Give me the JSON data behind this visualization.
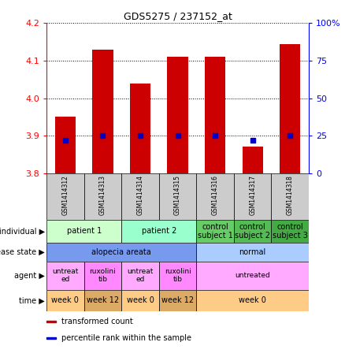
{
  "title": "GDS5275 / 237152_at",
  "samples": [
    "GSM1414312",
    "GSM1414313",
    "GSM1414314",
    "GSM1414315",
    "GSM1414316",
    "GSM1414317",
    "GSM1414318"
  ],
  "transformed_count": [
    3.95,
    4.13,
    4.04,
    4.11,
    4.11,
    3.87,
    4.145
  ],
  "percentile_rank": [
    22,
    25,
    25,
    25,
    25,
    22,
    25
  ],
  "ymin": 3.8,
  "ymax": 4.2,
  "yticks": [
    3.8,
    3.9,
    4.0,
    4.1,
    4.2
  ],
  "y2min": 0,
  "y2max": 100,
  "y2ticks": [
    0,
    25,
    50,
    75,
    100
  ],
  "bar_color": "#cc0000",
  "dot_color": "#0000cc",
  "sample_bg": "#cccccc",
  "individual_data": [
    {
      "label": "patient 1",
      "start": 0,
      "end": 2,
      "color": "#ccffcc"
    },
    {
      "label": "patient 2",
      "start": 2,
      "end": 4,
      "color": "#99ffcc"
    },
    {
      "label": "control\nsubject 1",
      "start": 4,
      "end": 5,
      "color": "#66cc66"
    },
    {
      "label": "control\nsubject 2",
      "start": 5,
      "end": 6,
      "color": "#55bb55"
    },
    {
      "label": "control\nsubject 3",
      "start": 6,
      "end": 7,
      "color": "#44aa44"
    }
  ],
  "disease_data": [
    {
      "label": "alopecia areata",
      "start": 0,
      "end": 4,
      "color": "#7799ee"
    },
    {
      "label": "normal",
      "start": 4,
      "end": 7,
      "color": "#aaccff"
    }
  ],
  "agent_data": [
    {
      "label": "untreat\ned",
      "start": 0,
      "end": 1,
      "color": "#ffaaff"
    },
    {
      "label": "ruxolini\ntib",
      "start": 1,
      "end": 2,
      "color": "#ff88ff"
    },
    {
      "label": "untreat\ned",
      "start": 2,
      "end": 3,
      "color": "#ffaaff"
    },
    {
      "label": "ruxolini\ntib",
      "start": 3,
      "end": 4,
      "color": "#ff88ff"
    },
    {
      "label": "untreated",
      "start": 4,
      "end": 7,
      "color": "#ffaaff"
    }
  ],
  "time_data": [
    {
      "label": "week 0",
      "start": 0,
      "end": 1,
      "color": "#ffcc88"
    },
    {
      "label": "week 12",
      "start": 1,
      "end": 2,
      "color": "#ddaa66"
    },
    {
      "label": "week 0",
      "start": 2,
      "end": 3,
      "color": "#ffcc88"
    },
    {
      "label": "week 12",
      "start": 3,
      "end": 4,
      "color": "#ddaa66"
    },
    {
      "label": "week 0",
      "start": 4,
      "end": 7,
      "color": "#ffcc88"
    }
  ],
  "row_labels": [
    "individual",
    "disease state",
    "agent",
    "time"
  ],
  "legend_items": [
    {
      "color": "#cc0000",
      "label": "transformed count"
    },
    {
      "color": "#0000cc",
      "label": "percentile rank within the sample"
    }
  ]
}
